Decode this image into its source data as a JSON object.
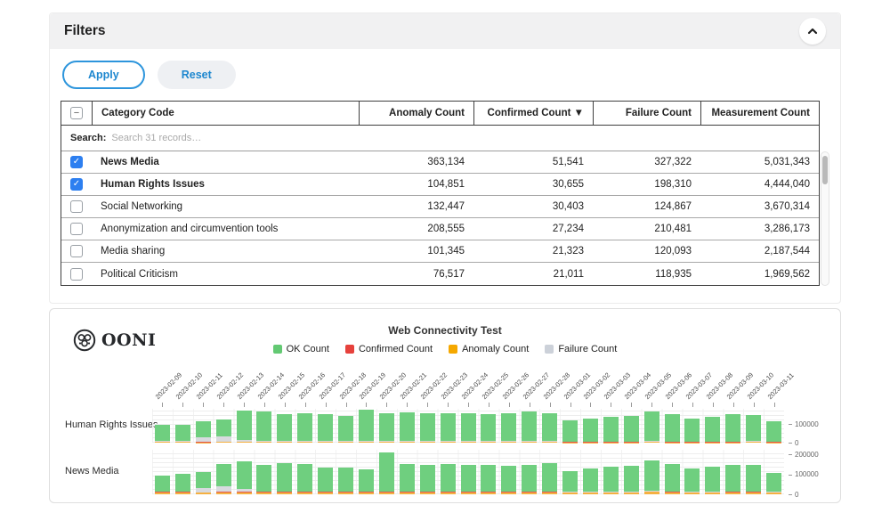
{
  "colors": {
    "accent_blue": "#1d87cf",
    "checkbox_blue": "#2d7ff0",
    "ok_green": "#63c973",
    "confirmed_red": "#e6413c",
    "anomaly_orange": "#f5a800",
    "failure_gray": "#ccd1d9"
  },
  "filters": {
    "title": "Filters",
    "apply_label": "Apply",
    "reset_label": "Reset",
    "table": {
      "columns": [
        "Category Code",
        "Anomaly Count",
        "Confirmed Count ▼",
        "Failure Count",
        "Measurement Count"
      ],
      "search_label": "Search:",
      "search_placeholder": "Search 31 records…",
      "rows": [
        {
          "label": "News Media",
          "checked": true,
          "anomaly": "363,134",
          "confirmed": "51,541",
          "failure": "327,322",
          "measurement": "5,031,343"
        },
        {
          "label": "Human Rights Issues",
          "checked": true,
          "anomaly": "104,851",
          "confirmed": "30,655",
          "failure": "198,310",
          "measurement": "4,444,040"
        },
        {
          "label": "Social Networking",
          "checked": false,
          "anomaly": "132,447",
          "confirmed": "30,403",
          "failure": "124,867",
          "measurement": "3,670,314"
        },
        {
          "label": "Anonymization and circumvention tools",
          "checked": false,
          "anomaly": "208,555",
          "confirmed": "27,234",
          "failure": "210,481",
          "measurement": "3,286,173"
        },
        {
          "label": "Media sharing",
          "checked": false,
          "anomaly": "101,345",
          "confirmed": "21,323",
          "failure": "120,093",
          "measurement": "2,187,544"
        },
        {
          "label": "Political Criticism",
          "checked": false,
          "anomaly": "76,517",
          "confirmed": "21,011",
          "failure": "118,935",
          "measurement": "1,969,562"
        }
      ]
    }
  },
  "chart": {
    "brand": "OONI",
    "title": "Web Connectivity Test",
    "legend": [
      {
        "label": "OK Count",
        "color": "#63c973"
      },
      {
        "label": "Confirmed Count",
        "color": "#e6413c"
      },
      {
        "label": "Anomaly Count",
        "color": "#f5a800"
      },
      {
        "label": "Failure Count",
        "color": "#ccd1d9"
      }
    ]
  },
  "chart_data": {
    "type": "bar",
    "stacked": true,
    "title": "Web Connectivity Test",
    "legend_position": "top",
    "grid": true,
    "x": [
      "2023-02-09",
      "2023-02-10",
      "2023-02-11",
      "2023-02-12",
      "2023-02-13",
      "2023-02-14",
      "2023-02-15",
      "2023-02-16",
      "2023-02-17",
      "2023-02-18",
      "2023-02-19",
      "2023-02-20",
      "2023-02-21",
      "2023-02-22",
      "2023-02-23",
      "2023-02-24",
      "2023-02-25",
      "2023-02-26",
      "2023-02-27",
      "2023-02-28",
      "2023-03-01",
      "2023-03-02",
      "2023-03-03",
      "2023-03-04",
      "2023-03-05",
      "2023-03-06",
      "2023-03-07",
      "2023-03-08",
      "2023-03-09",
      "2023-03-10",
      "2023-03-11"
    ],
    "rows": [
      {
        "label": "Human Rights Issues",
        "ylim": [
          0,
          180000
        ],
        "yticks": [
          0,
          100000
        ],
        "series": [
          {
            "name": "Anomaly Count",
            "color": "#f5b041",
            "values": [
              3000,
              3000,
              2000,
              3000,
              4000,
              3000,
              3000,
              3000,
              3000,
              3000,
              3000,
              3000,
              3000,
              3000,
              3000,
              3000,
              3000,
              3000,
              3000,
              3000,
              2000,
              2000,
              2000,
              2000,
              3000,
              2000,
              2000,
              2000,
              2000,
              3000,
              2000
            ]
          },
          {
            "name": "Confirmed Count",
            "color": "#e3584f",
            "values": [
              2000,
              3000,
              2000,
              3000,
              3000,
              2000,
              2000,
              2000,
              2000,
              2000,
              2000,
              2000,
              2000,
              2000,
              2000,
              2000,
              2000,
              2000,
              2000,
              2000,
              1000,
              1000,
              1000,
              1000,
              2000,
              1000,
              1000,
              1000,
              1000,
              2000,
              1000
            ]
          },
          {
            "name": "Failure Count",
            "color": "#d8dadf",
            "values": [
              1000,
              1000,
              26000,
              29000,
              8000,
              1000,
              1000,
              1000,
              1000,
              1000,
              1000,
              1000,
              1000,
              1000,
              2000,
              1000,
              2000,
              1000,
              1000,
              1000,
              1000,
              1000,
              1000,
              1000,
              1000,
              1000,
              1000,
              1000,
              1000,
              1000,
              1000
            ]
          },
          {
            "name": "OK Count",
            "color": "#6fcf7f",
            "values": [
              86000,
              88000,
              82000,
              88000,
              158000,
              156000,
              146000,
              150000,
              146000,
              136000,
              166000,
              148000,
              153000,
              150000,
              148000,
              148000,
              146000,
              150000,
              156000,
              150000,
              110000,
              120000,
              130000,
              133000,
              156000,
              143000,
              123000,
              130000,
              146000,
              140000,
              108000
            ]
          }
        ]
      },
      {
        "label": "News Media",
        "ylim": [
          0,
          220000
        ],
        "yticks": [
          0,
          100000,
          200000
        ],
        "series": [
          {
            "name": "Anomaly Count",
            "color": "#f5b041",
            "values": [
              9000,
              10000,
              8000,
              9000,
              10000,
              9000,
              9000,
              9000,
              9000,
              9000,
              9000,
              10000,
              9000,
              9000,
              9000,
              9000,
              9000,
              9000,
              9000,
              10000,
              8000,
              8000,
              8000,
              8000,
              12000,
              10000,
              8000,
              8000,
              9000,
              9000,
              7000
            ]
          },
          {
            "name": "Confirmed Count",
            "color": "#e3584f",
            "values": [
              3000,
              3000,
              2000,
              3000,
              3000,
              3000,
              3000,
              3000,
              3000,
              3000,
              3000,
              3000,
              3000,
              3000,
              3000,
              3000,
              3000,
              3000,
              3000,
              3000,
              2000,
              2000,
              2000,
              2000,
              3000,
              3000,
              2000,
              2000,
              2000,
              3000,
              2000
            ]
          },
          {
            "name": "Failure Count",
            "color": "#d8dadf",
            "values": [
              2000,
              2000,
              20000,
              26000,
              12000,
              3000,
              2000,
              2000,
              2000,
              2000,
              2000,
              2000,
              2000,
              2000,
              2000,
              2000,
              3000,
              2000,
              2000,
              2000,
              2000,
              2000,
              2000,
              2000,
              2000,
              2000,
              2000,
              2000,
              2000,
              2000,
              2000
            ]
          },
          {
            "name": "OK Count",
            "color": "#6fcf7f",
            "values": [
              80000,
              85000,
              80000,
              110000,
              136000,
              130000,
              140000,
              136000,
              120000,
              120000,
              110000,
              192000,
              136000,
              130000,
              136000,
              130000,
              130000,
              126000,
              133000,
              138000,
              100000,
              116000,
              126000,
              128000,
              150000,
              136000,
              116000,
              122000,
              134000,
              130000,
              93000
            ]
          }
        ]
      }
    ]
  }
}
